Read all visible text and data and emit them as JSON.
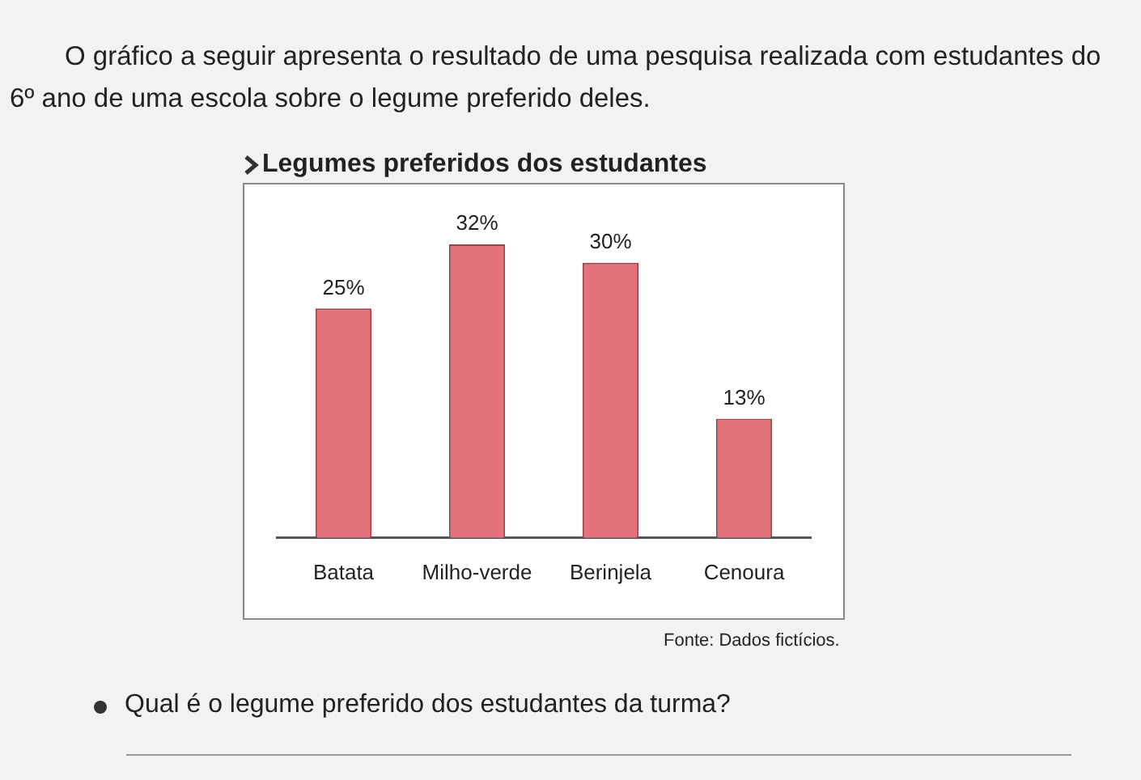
{
  "chart_data": {
    "type": "bar",
    "title": "Legumes preferidos dos estudantes",
    "subtitle": "O gráfico a seguir apresenta o resultado de uma pesquisa realizada com estudantes do 6º ano de uma escola sobre o legume preferido deles.",
    "categories": [
      "Batata",
      "Milho-verde",
      "Berinjela",
      "Cenoura"
    ],
    "values": [
      25,
      32,
      30,
      13
    ],
    "value_labels": [
      "25%",
      "32%",
      "30%",
      "13%"
    ],
    "color": "#e2737b",
    "tick_labels": "x",
    "grid": false,
    "legend": false,
    "annotations": [
      "Fonte: Dados fictícios.",
      "Qual é o legume preferido dos estudantes da turma?"
    ]
  }
}
